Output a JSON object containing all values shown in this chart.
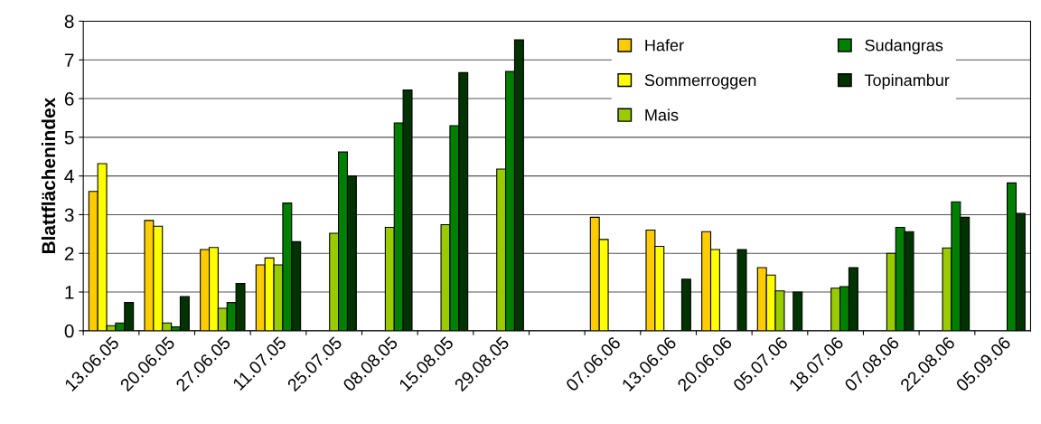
{
  "chart_data": {
    "type": "bar",
    "ylabel": "Blattflächenindex",
    "categories": [
      "13.06.05",
      "20.06.05",
      "27.06.05",
      "11.07.05",
      "25.07.05",
      "08.08.05",
      "15.08.05",
      "29.08.05",
      null,
      "07.06.06",
      "13.06.06",
      "20.06.06",
      "05.07.06",
      "18.07.06",
      "07.08.06",
      "22.08.06",
      "05.09.06"
    ],
    "series": [
      {
        "name": "Hafer",
        "color": "#ffcc00",
        "values": [
          3.6,
          2.85,
          2.1,
          1.7,
          null,
          null,
          null,
          null,
          null,
          2.93,
          2.6,
          2.56,
          1.63,
          null,
          null,
          null,
          null
        ]
      },
      {
        "name": "Sommerroggen",
        "color": "#ffff00",
        "values": [
          4.32,
          2.7,
          2.15,
          1.88,
          null,
          null,
          null,
          null,
          null,
          2.36,
          2.18,
          2.1,
          1.44,
          null,
          null,
          null,
          null
        ]
      },
      {
        "name": "Mais",
        "color": "#99cc00",
        "values": [
          0.13,
          0.2,
          0.58,
          1.7,
          2.52,
          2.67,
          2.74,
          4.18,
          null,
          null,
          null,
          null,
          1.03,
          1.1,
          2.0,
          2.14,
          null
        ]
      },
      {
        "name": "Sudangras",
        "color": "#008000",
        "values": [
          0.2,
          0.1,
          0.73,
          3.3,
          4.62,
          5.37,
          5.3,
          6.7,
          null,
          null,
          null,
          null,
          null,
          1.14,
          2.67,
          3.33,
          3.82
        ]
      },
      {
        "name": "Topinambur",
        "color": "#003300",
        "values": [
          0.73,
          0.88,
          1.22,
          2.3,
          4.0,
          6.22,
          6.67,
          7.52,
          null,
          null,
          1.33,
          2.1,
          1.0,
          1.63,
          2.56,
          2.93,
          3.03
        ]
      }
    ],
    "ylim": [
      0,
      8
    ],
    "yticks": [
      0,
      1,
      2,
      3,
      4,
      5,
      6,
      7,
      8
    ],
    "grid": "y",
    "legend": "top right"
  }
}
